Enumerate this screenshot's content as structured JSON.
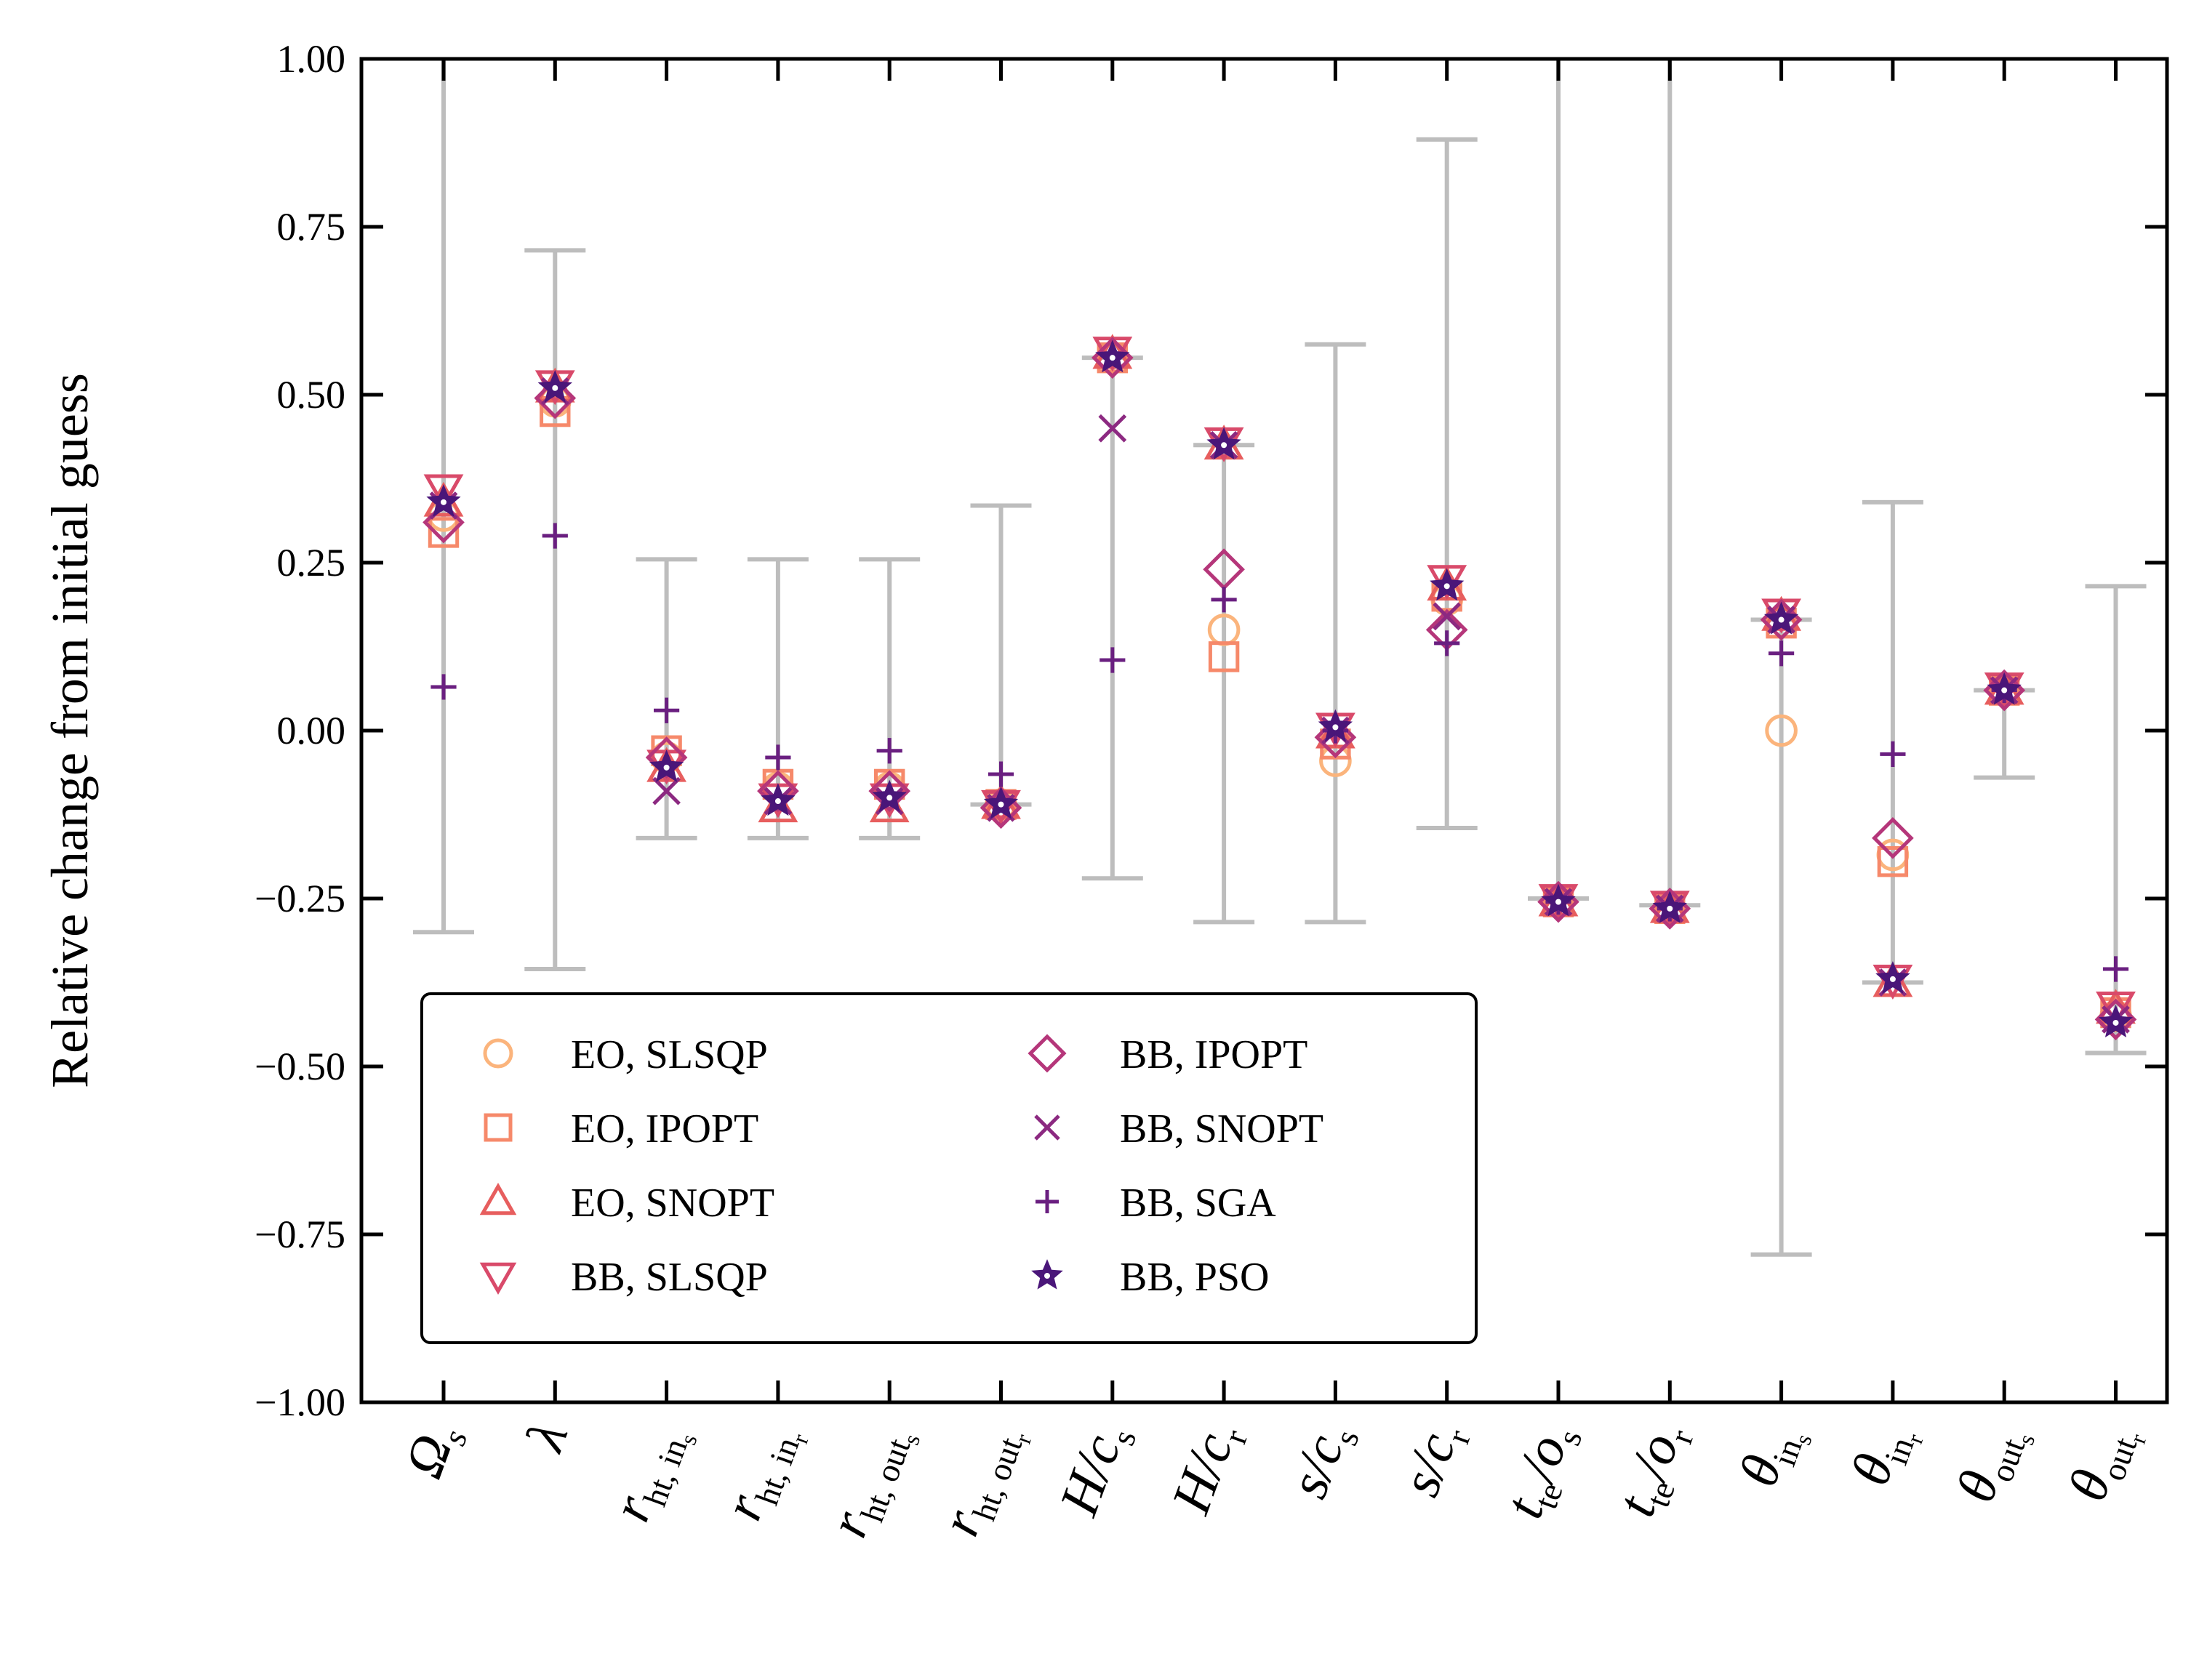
{
  "chart_data": {
    "type": "scatter",
    "title": "",
    "xlabel": "",
    "ylabel": "Relative change from initial guess",
    "ylim": [
      -1.0,
      1.0
    ],
    "yticks": [
      "1.00",
      "0.75",
      "0.50",
      "0.25",
      "0.00",
      "−0.25",
      "−0.50",
      "−0.75",
      "−1.00"
    ],
    "ytick_values": [
      1.0,
      0.75,
      0.5,
      0.25,
      0.0,
      -0.25,
      -0.5,
      -0.75,
      -1.0
    ],
    "grid": false,
    "legend_position": "lower-left",
    "categories": [
      {
        "main": "Ω",
        "sub": "s",
        "sub_style": "italic"
      },
      {
        "main": "λ",
        "sub": "",
        "sub_style": "italic"
      },
      {
        "main": "r",
        "sub": "ht, in",
        "subsub": "s"
      },
      {
        "main": "r",
        "sub": "ht, in",
        "subsub": "r"
      },
      {
        "main": "r",
        "sub": "ht, out",
        "subsub": "s"
      },
      {
        "main": "r",
        "sub": "ht, out",
        "subsub": "r"
      },
      {
        "main": "H/c",
        "sub": "s"
      },
      {
        "main": "H/c",
        "sub": "r"
      },
      {
        "main": "s/c",
        "sub": "s"
      },
      {
        "main": "s/c",
        "sub": "r"
      },
      {
        "main": "t",
        "sub": "te",
        "tail": "/o",
        "tailsub": "s"
      },
      {
        "main": "t",
        "sub": "te",
        "tail": "/o",
        "tailsub": "r"
      },
      {
        "main": "θ",
        "sub": "in",
        "subsub": "s"
      },
      {
        "main": "θ",
        "sub": "in",
        "subsub": "r"
      },
      {
        "main": "θ",
        "sub": "out",
        "subsub": "s"
      },
      {
        "main": "θ",
        "sub": "out",
        "subsub": "r"
      }
    ],
    "bounds": [
      {
        "low": -0.3,
        "high": 1.0,
        "cap_top": false
      },
      {
        "low": -0.355,
        "high": 0.715,
        "cap_top": true
      },
      {
        "low": -0.16,
        "high": 0.255,
        "cap_top": true
      },
      {
        "low": -0.16,
        "high": 0.255,
        "cap_top": true
      },
      {
        "low": -0.16,
        "high": 0.255,
        "cap_top": true
      },
      {
        "low": -0.11,
        "high": 0.335,
        "cap_top": true
      },
      {
        "low": -0.22,
        "high": 0.555,
        "cap_top": true
      },
      {
        "low": -0.285,
        "high": 0.425,
        "cap_top": true
      },
      {
        "low": -0.285,
        "high": 0.575,
        "cap_top": true
      },
      {
        "low": -0.145,
        "high": 0.88,
        "cap_top": true
      },
      {
        "low": -0.25,
        "high": 1.0,
        "cap_top": false
      },
      {
        "low": -0.26,
        "high": 1.0,
        "cap_top": false
      },
      {
        "low": -0.78,
        "high": 0.165,
        "cap_top": true
      },
      {
        "low": -0.375,
        "high": 0.34,
        "cap_top": true
      },
      {
        "low": -0.07,
        "high": 0.06,
        "cap_top": true
      },
      {
        "low": -0.48,
        "high": 0.215,
        "cap_top": true
      }
    ],
    "series": [
      {
        "name": "EO, SLSQP",
        "marker": "circle",
        "color": "#fbb47c",
        "values": [
          0.32,
          0.49,
          -0.04,
          -0.085,
          -0.085,
          -0.11,
          0.555,
          0.15,
          -0.045,
          0.195,
          -0.255,
          -0.265,
          0.0,
          -0.185,
          0.06,
          -0.425
        ]
      },
      {
        "name": "EO, IPOPT",
        "marker": "square",
        "color": "#f6896a",
        "values": [
          0.295,
          0.475,
          -0.03,
          -0.08,
          -0.08,
          -0.11,
          0.555,
          0.11,
          -0.02,
          0.2,
          -0.255,
          -0.265,
          0.16,
          -0.195,
          0.06,
          -0.42
        ]
      },
      {
        "name": "EO, SNOPT",
        "marker": "triangle-up",
        "color": "#e75e5e",
        "values": [
          0.34,
          0.51,
          -0.055,
          -0.115,
          -0.115,
          -0.11,
          0.56,
          0.425,
          -0.005,
          0.215,
          -0.255,
          -0.265,
          0.17,
          -0.375,
          0.06,
          -0.415
        ]
      },
      {
        "name": "BB, SLSQP",
        "marker": "triangle-down",
        "color": "#d94a6a",
        "values": [
          0.36,
          0.515,
          -0.05,
          -0.1,
          -0.1,
          -0.11,
          0.565,
          0.43,
          0.005,
          0.225,
          -0.25,
          -0.26,
          0.175,
          -0.37,
          0.065,
          -0.41
        ]
      },
      {
        "name": "BB, IPOPT",
        "marker": "diamond",
        "color": "#b5367a",
        "values": [
          0.31,
          0.495,
          -0.04,
          -0.09,
          -0.09,
          -0.115,
          0.555,
          0.24,
          -0.01,
          0.15,
          -0.255,
          -0.265,
          0.165,
          -0.16,
          0.06,
          -0.43
        ]
      },
      {
        "name": "BB, SNOPT",
        "marker": "x",
        "color": "#8c2981",
        "values": [
          0.335,
          0.505,
          -0.09,
          -0.105,
          -0.105,
          -0.115,
          0.45,
          0.425,
          0.0,
          0.17,
          -0.255,
          -0.265,
          0.165,
          -0.375,
          0.06,
          -0.43
        ]
      },
      {
        "name": "BB, SGA",
        "marker": "plus",
        "color": "#6a1f80",
        "values": [
          0.065,
          0.29,
          0.03,
          -0.04,
          -0.03,
          -0.065,
          0.105,
          0.195,
          0.0,
          0.13,
          -0.255,
          -0.265,
          0.115,
          -0.035,
          0.06,
          -0.355
        ]
      },
      {
        "name": "BB, PSO",
        "marker": "star",
        "color": "#4a1679",
        "values": [
          0.34,
          0.51,
          -0.055,
          -0.105,
          -0.1,
          -0.11,
          0.555,
          0.425,
          0.005,
          0.215,
          -0.255,
          -0.265,
          0.165,
          -0.37,
          0.06,
          -0.435
        ]
      }
    ]
  }
}
